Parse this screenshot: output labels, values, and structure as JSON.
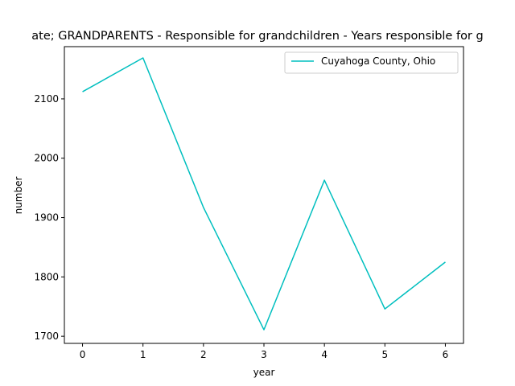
{
  "chart_data": {
    "type": "line",
    "title": "ate; GRANDPARENTS - Responsible for grandchildren - Years responsible for g",
    "xlabel": "year",
    "ylabel": "number",
    "x": [
      0,
      1,
      2,
      3,
      4,
      5,
      6
    ],
    "xticks": [
      "0",
      "1",
      "2",
      "3",
      "4",
      "5",
      "6"
    ],
    "yticks": [
      1700,
      1800,
      1900,
      2000,
      2100
    ],
    "xlim": [
      -0.3,
      6.3
    ],
    "ylim": [
      1688,
      2188
    ],
    "grid": false,
    "legend_position": "top-right",
    "series": [
      {
        "name": "Cuyahoga County, Ohio",
        "color": "#00bfbf",
        "values": [
          2112,
          2169,
          1917,
          1711,
          1963,
          1746,
          1825
        ]
      }
    ]
  }
}
